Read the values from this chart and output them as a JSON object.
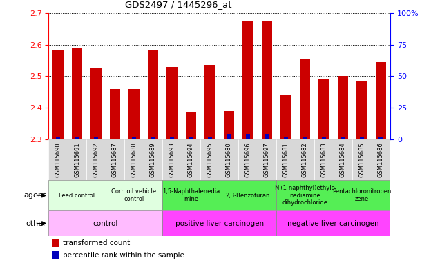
{
  "title": "GDS2497 / 1445296_at",
  "samples": [
    "GSM115690",
    "GSM115691",
    "GSM115692",
    "GSM115687",
    "GSM115688",
    "GSM115689",
    "GSM115693",
    "GSM115694",
    "GSM115695",
    "GSM115680",
    "GSM115696",
    "GSM115697",
    "GSM115681",
    "GSM115682",
    "GSM115683",
    "GSM115684",
    "GSM115685",
    "GSM115686"
  ],
  "transformed_count": [
    2.585,
    2.59,
    2.525,
    2.46,
    2.46,
    2.585,
    2.53,
    2.385,
    2.535,
    2.39,
    2.675,
    2.675,
    2.44,
    2.555,
    2.49,
    2.5,
    2.485,
    2.545
  ],
  "percentile_rank": [
    2,
    2,
    2,
    0.5,
    2,
    2,
    2,
    2,
    2,
    4,
    4,
    4,
    2,
    2,
    2,
    2,
    2,
    2
  ],
  "ylim_left": [
    2.3,
    2.7
  ],
  "ylim_right": [
    0,
    100
  ],
  "yticks_left": [
    2.3,
    2.4,
    2.5,
    2.6,
    2.7
  ],
  "yticks_right": [
    0,
    25,
    50,
    75,
    100
  ],
  "ytick_labels_right": [
    "0",
    "25",
    "50",
    "75",
    "100%"
  ],
  "bar_color_red": "#cc0000",
  "bar_color_blue": "#0000bb",
  "agent_groups": [
    {
      "label": "Feed control",
      "start": 0,
      "end": 3,
      "color": "#e0ffe0"
    },
    {
      "label": "Corn oil vehicle\ncontrol",
      "start": 3,
      "end": 6,
      "color": "#e0ffe0"
    },
    {
      "label": "1,5-Naphthalenedia\nmine",
      "start": 6,
      "end": 9,
      "color": "#55ee55"
    },
    {
      "label": "2,3-Benzofuran",
      "start": 9,
      "end": 12,
      "color": "#55ee55"
    },
    {
      "label": "N-(1-naphthyl)ethyle\nnediamine\ndihydrochloride",
      "start": 12,
      "end": 15,
      "color": "#55ee55"
    },
    {
      "label": "Pentachloronitroben\nzene",
      "start": 15,
      "end": 18,
      "color": "#55ee55"
    }
  ],
  "other_groups": [
    {
      "label": "control",
      "start": 0,
      "end": 6,
      "color": "#ffbbff"
    },
    {
      "label": "positive liver carcinogen",
      "start": 6,
      "end": 12,
      "color": "#ff44ff"
    },
    {
      "label": "negative liver carcinogen",
      "start": 12,
      "end": 18,
      "color": "#ff44ff"
    }
  ],
  "legend_red": "transformed count",
  "legend_blue": "percentile rank within the sample"
}
